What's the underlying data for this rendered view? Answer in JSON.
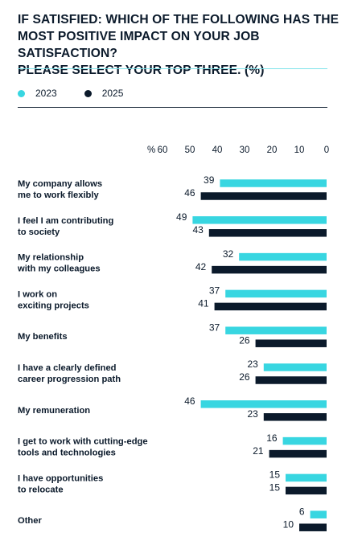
{
  "title_lines": [
    "IF SATISFIED: WHICH OF THE FOLLOWING HAS THE",
    "MOST POSITIVE IMPACT ON YOUR JOB SATISFACTION?",
    "PLEASE SELECT YOUR TOP THREE. (%)"
  ],
  "colors": {
    "s2023": "#38d6e1",
    "s2025": "#0b1a2b"
  },
  "chart_data": {
    "type": "bar",
    "orientation": "horizontal",
    "x_direction": "reversed",
    "title": "IF SATISFIED: WHICH OF THE FOLLOWING HAS THE MOST POSITIVE IMPACT ON YOUR JOB SATISFACTION? PLEASE SELECT YOUR TOP THREE. (%)",
    "xlim": [
      0,
      60
    ],
    "axis_unit": "%",
    "ticks": [
      60,
      50,
      40,
      30,
      20,
      10,
      0
    ],
    "legend_position": "top-left",
    "grid": false,
    "categories": [
      [
        "My company allows",
        "me to work flexibly"
      ],
      [
        "I feel I am contributing",
        "to society"
      ],
      [
        "My relationship",
        "with my colleagues"
      ],
      [
        "I work on",
        "exciting projects"
      ],
      [
        "My benefits"
      ],
      [
        "I have a clearly defined",
        "career progression path"
      ],
      [
        "My remuneration"
      ],
      [
        "I get to work with cutting-edge",
        "tools and technologies"
      ],
      [
        "I have opportunities",
        "to relocate"
      ],
      [
        "Other"
      ]
    ],
    "series": [
      {
        "name": "2023",
        "values": [
          39,
          49,
          32,
          37,
          37,
          23,
          46,
          16,
          15,
          6
        ]
      },
      {
        "name": "2025",
        "values": [
          46,
          43,
          42,
          41,
          26,
          26,
          23,
          21,
          15,
          10
        ]
      }
    ]
  }
}
